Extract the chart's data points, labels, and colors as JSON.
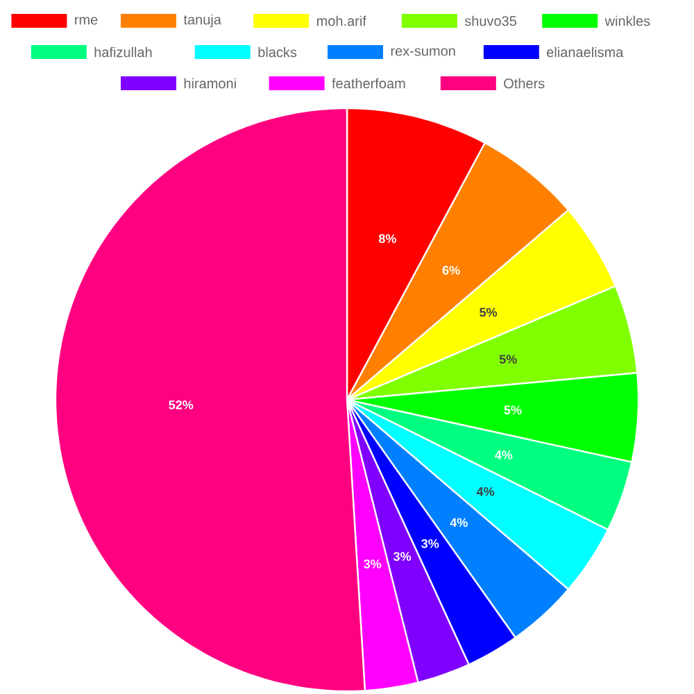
{
  "chart_data": {
    "type": "pie",
    "categories": [
      "rme",
      "tanuja",
      "moh.arif",
      "shuvo35",
      "winkles",
      "hafizullah",
      "blacks",
      "rex-sumon",
      "elianaelisma",
      "hiramoni",
      "featherfoam",
      "Others"
    ],
    "values": [
      8,
      6,
      5,
      5,
      5,
      4,
      4,
      4,
      3,
      3,
      3,
      52
    ],
    "value_labels": [
      "8%",
      "6%",
      "5%",
      "5%",
      "5%",
      "4%",
      "4%",
      "4%",
      "3%",
      "3%",
      "3%",
      "52%"
    ],
    "colors": [
      "#ff0000",
      "#ff8000",
      "#ffff00",
      "#80ff00",
      "#00ff00",
      "#00ff80",
      "#00ffff",
      "#0080ff",
      "#0000ff",
      "#8000ff",
      "#ff00ff",
      "#ff0080"
    ],
    "legend": "top"
  }
}
